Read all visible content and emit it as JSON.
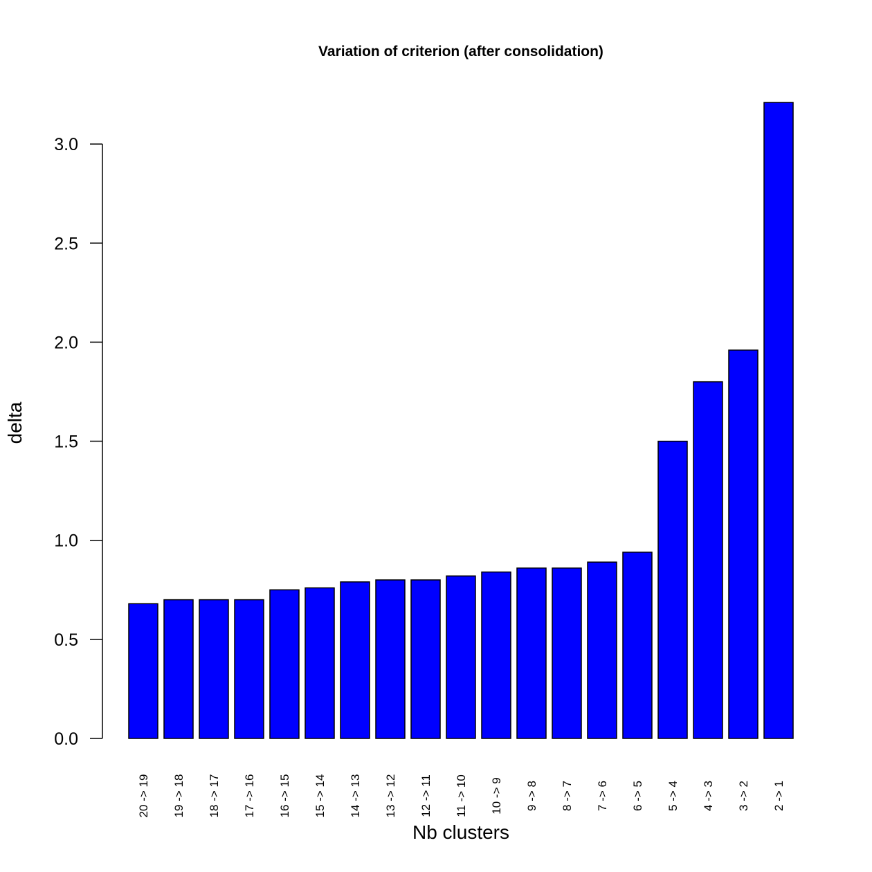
{
  "chart_data": {
    "type": "bar",
    "title": "Variation of criterion (after consolidation)",
    "xlabel": "Nb clusters",
    "ylabel": "delta",
    "categories": [
      "20 -> 19",
      "19 -> 18",
      "18 -> 17",
      "17 -> 16",
      "16 -> 15",
      "15 -> 14",
      "14 -> 13",
      "13 -> 12",
      "12 -> 11",
      "11 -> 10",
      "10 -> 9",
      "9 -> 8",
      "8 -> 7",
      "7 -> 6",
      "6 -> 5",
      "5 -> 4",
      "4 -> 3",
      "3 -> 2",
      "2 -> 1"
    ],
    "values": [
      0.68,
      0.7,
      0.7,
      0.7,
      0.75,
      0.76,
      0.79,
      0.8,
      0.8,
      0.82,
      0.84,
      0.86,
      0.86,
      0.89,
      0.94,
      1.5,
      1.8,
      1.96,
      3.21
    ],
    "ylim": [
      0,
      3.21
    ],
    "yticks": [
      "0.0",
      "0.5",
      "1.0",
      "1.5",
      "2.0",
      "2.5",
      "3.0"
    ],
    "bar_color": "#0000ff",
    "grid": false,
    "legend": "none"
  }
}
